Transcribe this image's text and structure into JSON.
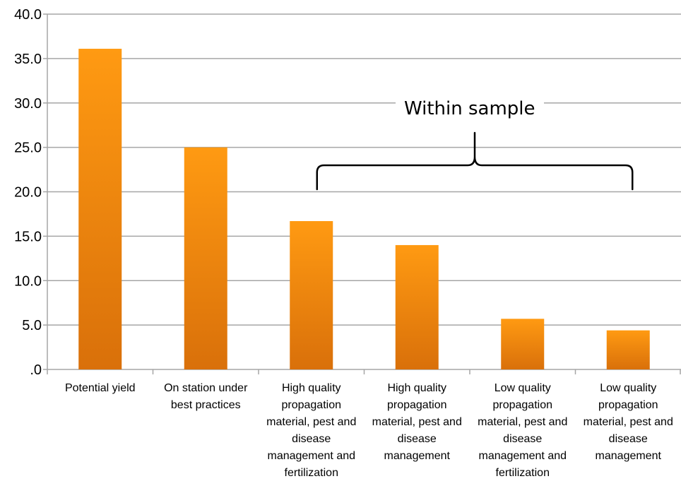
{
  "chart_data": {
    "type": "bar",
    "categories": [
      "Potential yield",
      "On station under best practices",
      "High quality propagation material, pest and disease management and fertilization",
      "High quality propagation material, pest and disease management",
      "Low quality propagation material, pest and disease management and fertilization",
      "Low quality propagation material, pest and disease management"
    ],
    "values": [
      36.1,
      25.0,
      16.7,
      14.0,
      5.7,
      4.4
    ],
    "ylim": [
      0,
      40
    ],
    "yticks": [
      ".0",
      "5.0",
      "10.0",
      "15.0",
      "20.0",
      "25.0",
      "30.0",
      "35.0",
      "40.0"
    ],
    "grid": true,
    "annotation": {
      "text": "Within sample",
      "spans_categories": [
        2,
        5
      ]
    },
    "colors": {
      "bar_top": "#ff9a12",
      "bar_bottom": "#d9700a",
      "grid": "#a6a6a6"
    }
  }
}
